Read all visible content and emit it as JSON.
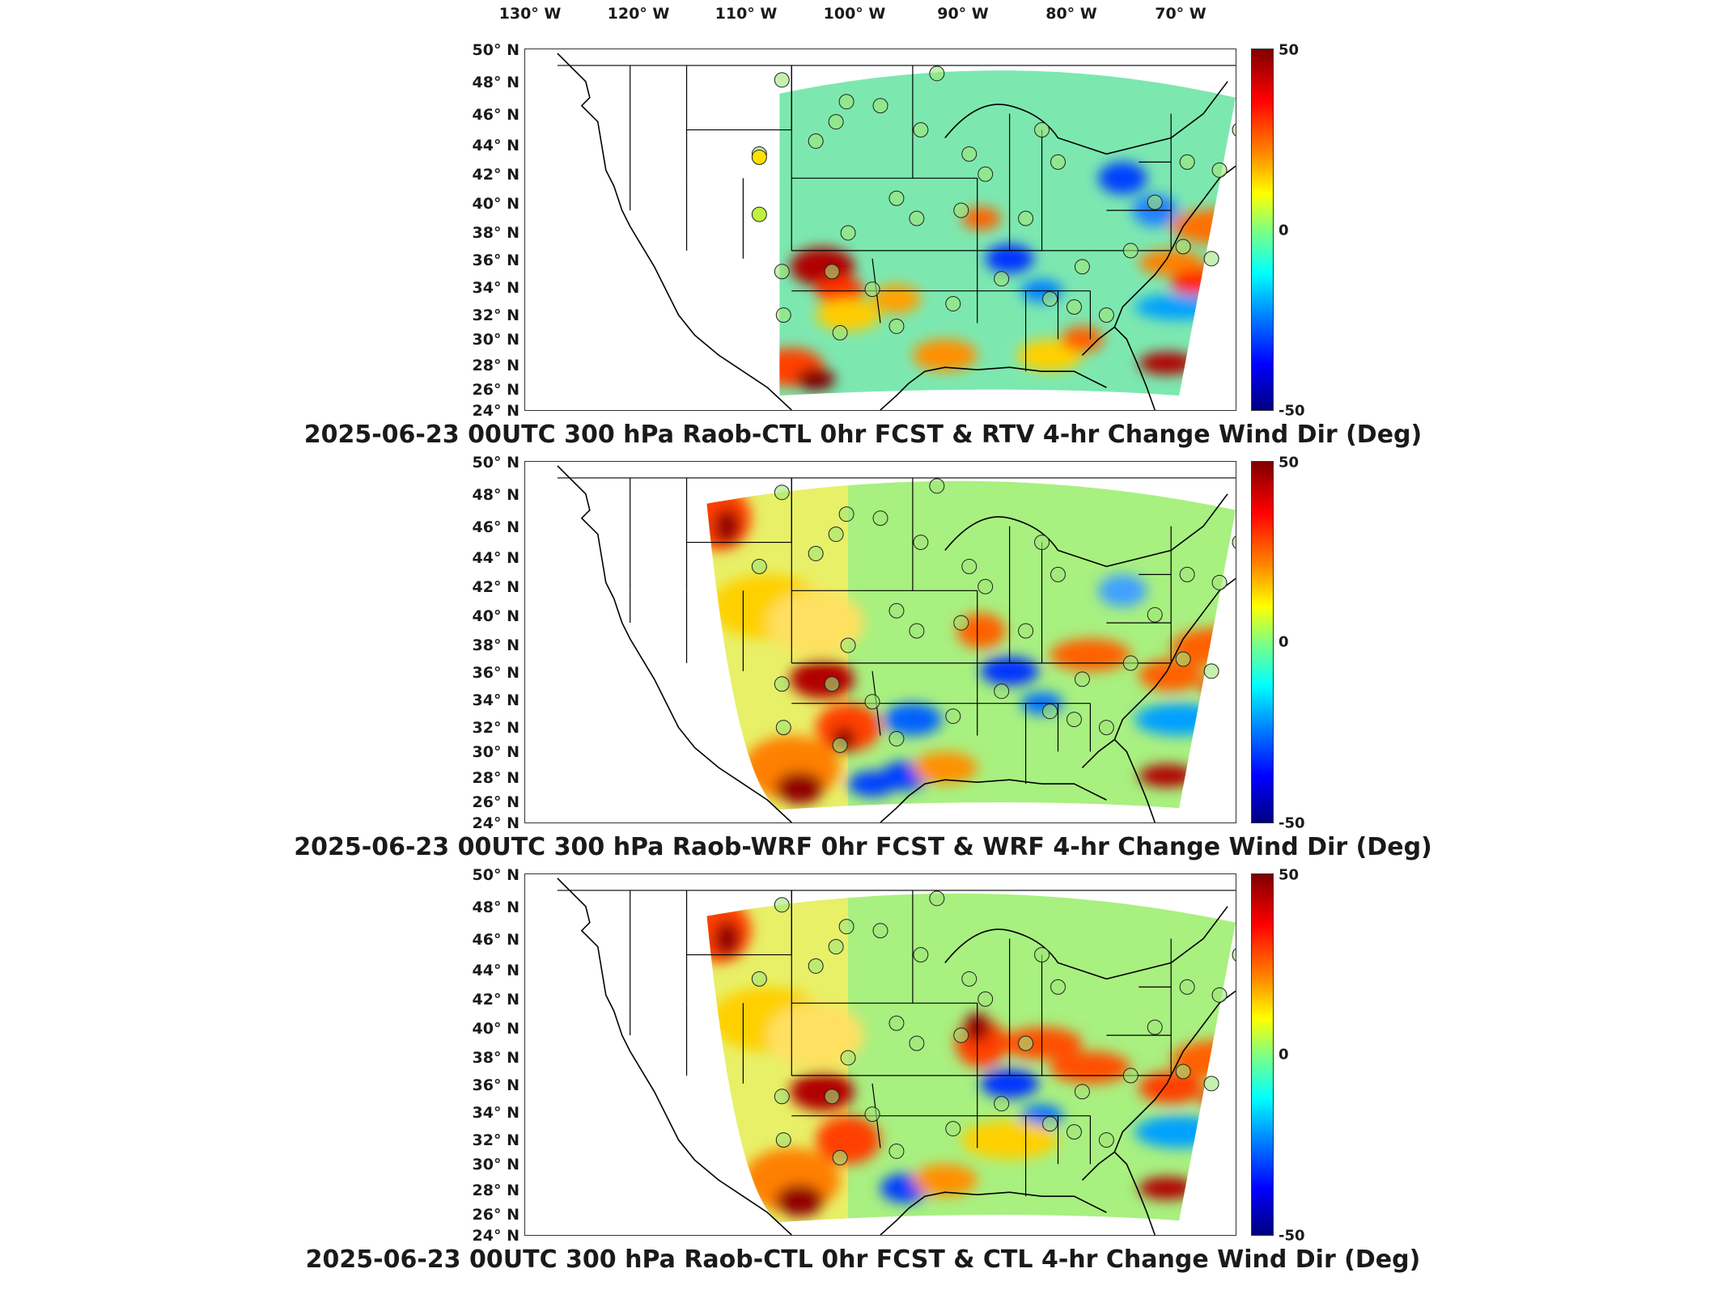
{
  "longitude_labels": [
    "130° W",
    "120° W",
    "110° W",
    "100° W",
    "90° W",
    "80° W",
    "70° W"
  ],
  "latitude_labels": [
    "50° N",
    "48° N",
    "46° N",
    "44° N",
    "42° N",
    "40° N",
    "38° N",
    "36° N",
    "34° N",
    "32° N",
    "30° N",
    "28° N",
    "26° N",
    "24° N"
  ],
  "colorbar": {
    "max_label": "50",
    "mid_label": "0",
    "min_label": "-50",
    "colors": [
      "#7f0000",
      "#ff0000",
      "#ff8000",
      "#ffff00",
      "#80ff80",
      "#00ffff",
      "#0080ff",
      "#0000ff",
      "#00007f"
    ]
  },
  "panels": [
    {
      "title": "2025-06-23 00UTC 300 hPa Raob-CTL 0hr FCST & RTV 4-hr Change Wind Dir (Deg)"
    },
    {
      "title": "2025-06-23 00UTC 300 hPa Raob-WRF 0hr FCST & WRF 4-hr Change Wind Dir (Deg)"
    },
    {
      "title": "2025-06-23 00UTC 300 hPa Raob-CTL 0hr FCST & CTL 4-hr Change Wind Dir (Deg)"
    }
  ]
}
